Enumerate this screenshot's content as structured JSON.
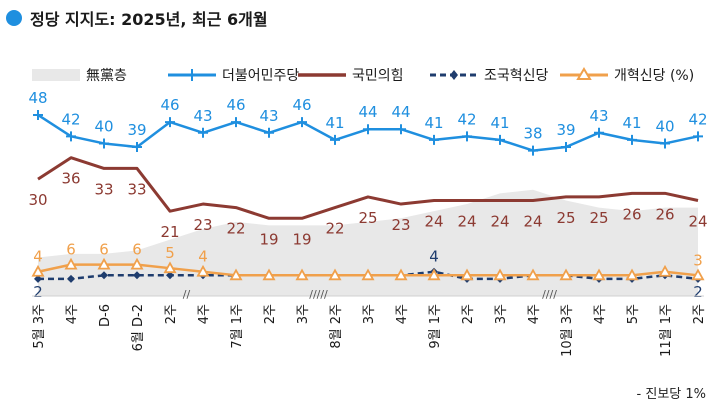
{
  "title": "정당 지지도: 2025년, 최근 6개월",
  "footnote": "- 진보당 1%",
  "colors": {
    "none": "#e8e8e8",
    "democratic": "#1f8fdf",
    "ppp": "#8c3a32",
    "rebuilding": "#1f3d6e",
    "reform": "#f0a04b"
  },
  "chart_data": {
    "type": "line",
    "categories": [
      "5월 3주",
      "4주",
      "D-6",
      "6월 D-2",
      "2주",
      "4주",
      "7월 1주",
      "2주",
      "3주",
      "8월 2주",
      "3주",
      "4주",
      "9월 1주",
      "2주",
      "3주",
      "4주",
      "10월 3주",
      "4주",
      "5주",
      "11월 1주",
      "2주"
    ],
    "x_tick_labels": [
      {
        "main": "3주",
        "sub": "5월"
      },
      {
        "main": "4주",
        "sub": ""
      },
      {
        "main": "D-6",
        "sub": ""
      },
      {
        "main": "D-2",
        "sub": "6월"
      },
      {
        "main": "2주",
        "sub": ""
      },
      {
        "main": "4주",
        "sub": ""
      },
      {
        "main": "1주",
        "sub": "7월"
      },
      {
        "main": "2주",
        "sub": ""
      },
      {
        "main": "3주",
        "sub": ""
      },
      {
        "main": "2주",
        "sub": "8월"
      },
      {
        "main": "3주",
        "sub": ""
      },
      {
        "main": "4주",
        "sub": ""
      },
      {
        "main": "1주",
        "sub": "9월"
      },
      {
        "main": "2주",
        "sub": ""
      },
      {
        "main": "3주",
        "sub": ""
      },
      {
        "main": "4주",
        "sub": ""
      },
      {
        "main": "3주",
        "sub": "10월"
      },
      {
        "main": "4주",
        "sub": ""
      },
      {
        "main": "5주",
        "sub": ""
      },
      {
        "main": "1주",
        "sub": "11월"
      },
      {
        "main": "2주",
        "sub": ""
      }
    ],
    "breaks": [
      {
        "after_index": 4,
        "mark": "//"
      },
      {
        "after_index": 8,
        "mark": "/////"
      },
      {
        "after_index": 15,
        "mark": "////"
      }
    ],
    "ylim": [
      0,
      55
    ],
    "series": [
      {
        "name": "無黨층",
        "key": "none",
        "style": "area",
        "values": [
          8,
          9,
          9,
          10,
          13,
          16,
          18,
          17,
          17,
          17,
          18,
          19,
          21,
          23,
          26,
          27,
          24,
          22,
          21,
          22,
          22
        ]
      },
      {
        "name": "더불어민주당",
        "key": "democratic",
        "style": "line-plus",
        "values": [
          48,
          42,
          40,
          39,
          46,
          43,
          46,
          43,
          46,
          41,
          44,
          44,
          41,
          42,
          41,
          38,
          39,
          43,
          41,
          40,
          42
        ],
        "label_pos": "above"
      },
      {
        "name": "국민의힘",
        "key": "ppp",
        "style": "line",
        "values": [
          30,
          36,
          33,
          33,
          21,
          23,
          22,
          19,
          19,
          22,
          25,
          23,
          24,
          24,
          24,
          24,
          25,
          25,
          26,
          26,
          24
        ],
        "label_pos": "below",
        "labels": [
          "30",
          "36",
          "33",
          "33",
          "21",
          "23",
          "22",
          "19",
          "19",
          "22",
          "25",
          "23",
          "24",
          "24",
          "24",
          "24",
          "25",
          "25",
          "26",
          "26",
          "24"
        ]
      },
      {
        "name": "조국혁신당",
        "key": "rebuilding",
        "style": "dashed",
        "values": [
          2,
          2,
          3,
          3,
          3,
          3,
          3,
          3,
          3,
          3,
          3,
          3,
          4,
          2,
          2,
          3,
          3,
          2,
          2,
          3,
          2
        ],
        "labels": {
          "0": "2",
          "12": "4",
          "20": "2"
        }
      },
      {
        "name": "개혁신당 (%)",
        "key": "reform",
        "style": "line-triangle",
        "values": [
          4,
          6,
          6,
          6,
          5,
          4,
          3,
          3,
          3,
          3,
          3,
          3,
          3,
          3,
          3,
          3,
          3,
          3,
          3,
          4,
          3
        ],
        "labels": {
          "0": "4",
          "1": "6",
          "2": "6",
          "3": "6",
          "4": "5",
          "5": "4",
          "20": "3"
        }
      }
    ]
  }
}
